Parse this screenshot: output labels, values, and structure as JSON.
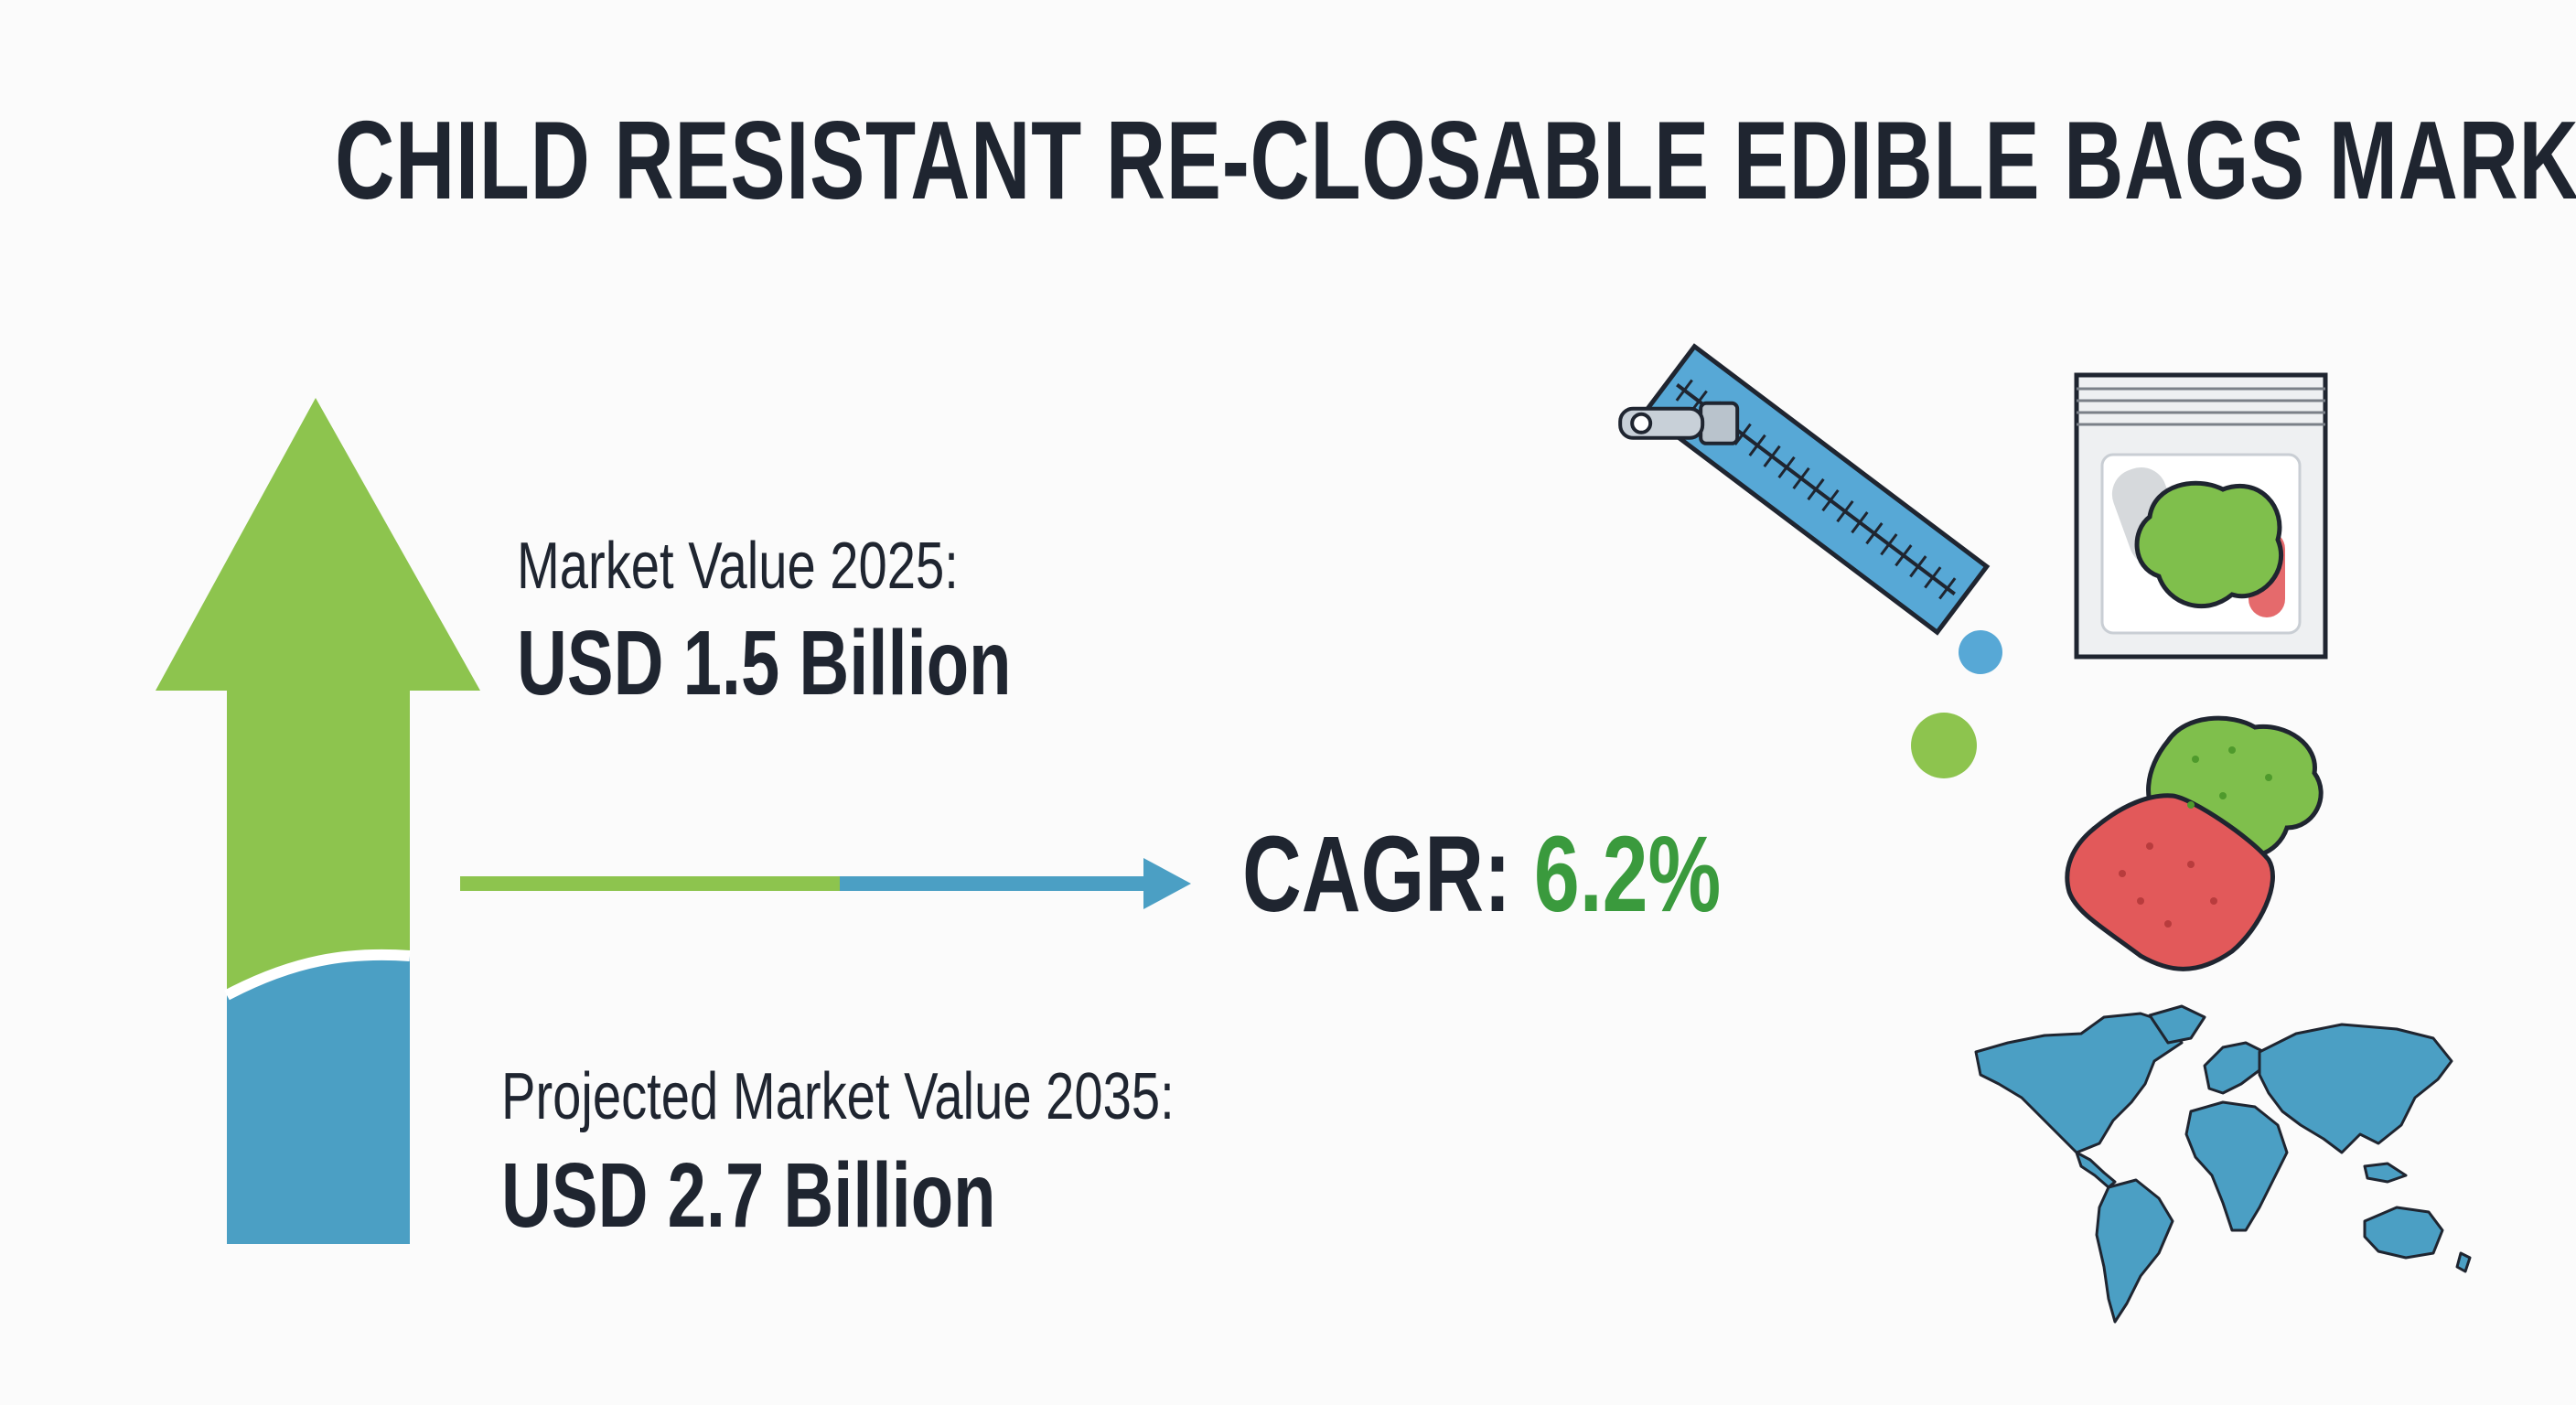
{
  "title": "CHILD RESISTANT RE-CLOSABLE EDIBLE BAGS MARKET",
  "market_value": {
    "label": "Market Value 2025:",
    "value": "USD 1.5 Billion"
  },
  "projected_value": {
    "label": "Projected Market Value 2035:",
    "value": "USD 2.7 Billion"
  },
  "cagr": {
    "label": "CAGR:",
    "value": "6.2%"
  },
  "colors": {
    "green": "#8dc44e",
    "blue": "#4b9fc4",
    "dark_text": "#1f2530",
    "cagr_green": "#3a9a3d",
    "gummy_red": "#e2595a"
  },
  "icons": [
    "growth-arrow-icon",
    "zipper-icon",
    "resealable-bag-icon",
    "gummy-candies-icon",
    "world-map-icon"
  ]
}
